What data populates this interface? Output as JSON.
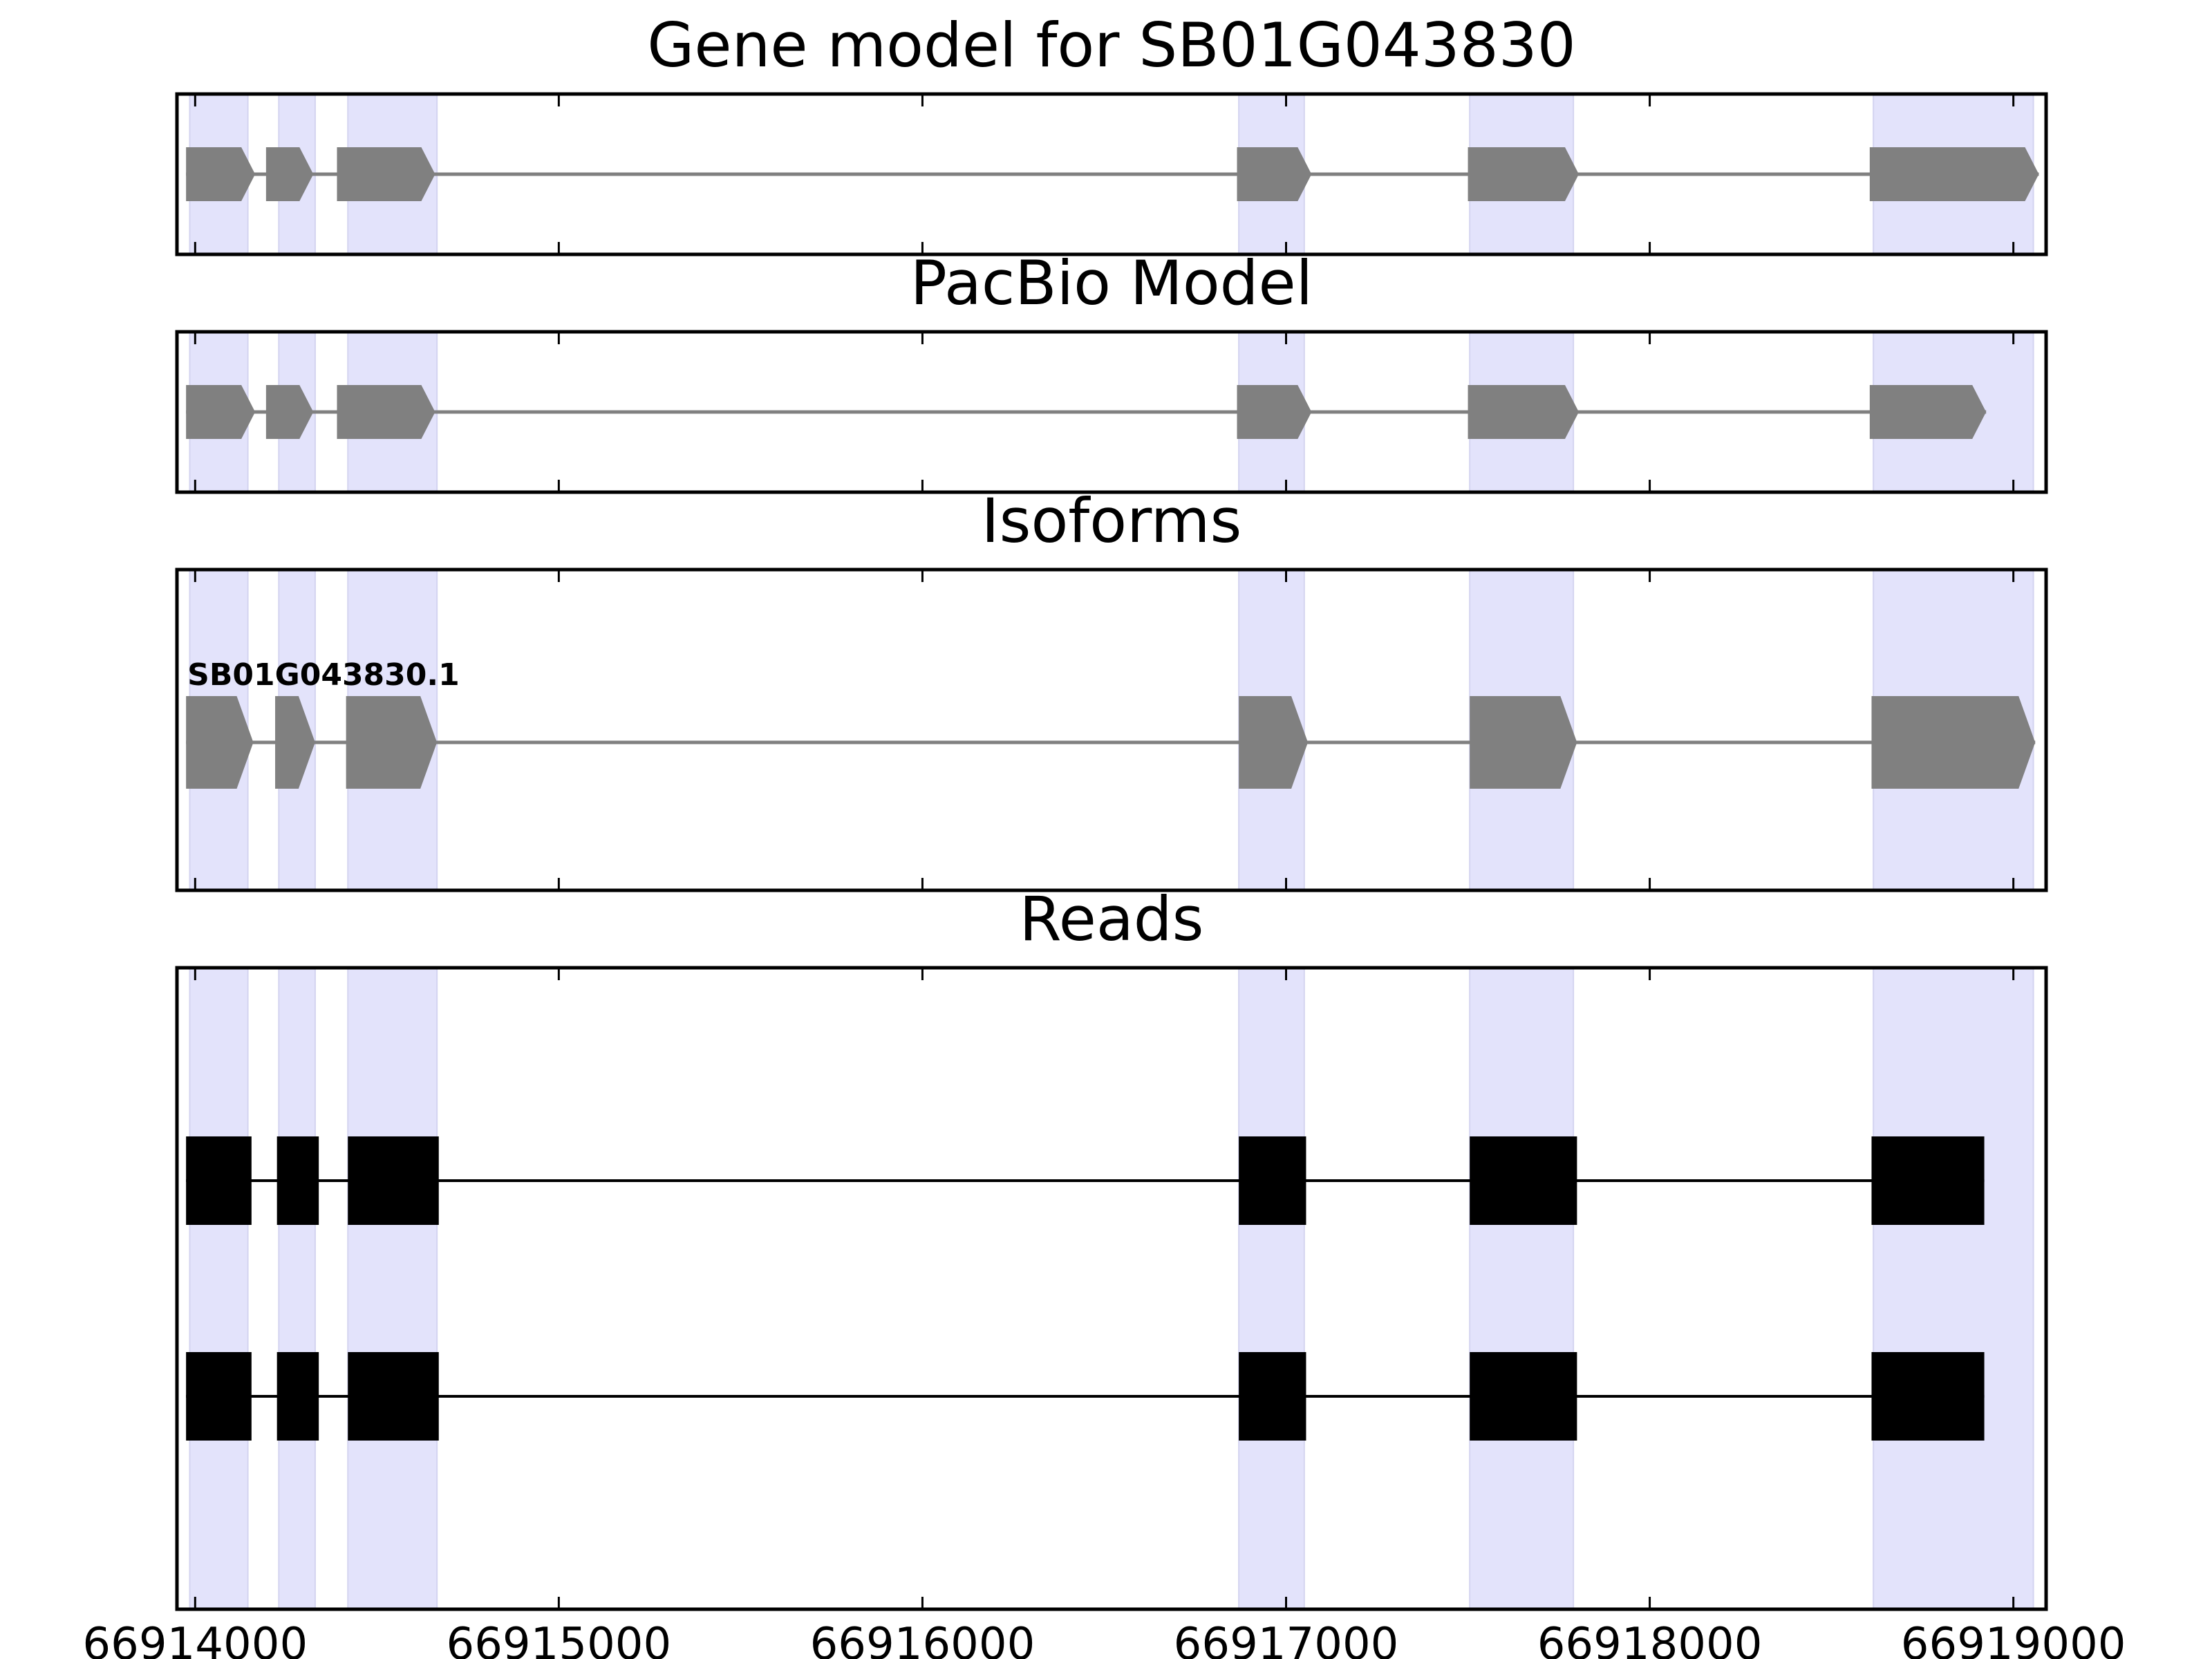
{
  "chart_data": {
    "type": "gene-structure",
    "xlim": [
      66913950,
      66919090
    ],
    "x_ticks": [
      66914000,
      66915000,
      66916000,
      66917000,
      66918000,
      66919000
    ],
    "x_tick_labels": [
      "66914000",
      "66915000",
      "66916000",
      "66917000",
      "66918000",
      "66919000"
    ],
    "colors": {
      "exon_model": "#808080",
      "exon_read": "#000000",
      "shading": "#e3e3fb",
      "intron_model": "#808080",
      "intron_read": "#000000",
      "frame": "#000000"
    },
    "shaded_regions": [
      [
        66913985,
        66914145
      ],
      [
        66914230,
        66914330
      ],
      [
        66914420,
        66914665
      ],
      [
        66916870,
        66917050
      ],
      [
        66917505,
        66917790
      ],
      [
        66918615,
        66919055
      ]
    ],
    "panels": [
      {
        "title": "Gene model for SB01G043830",
        "strand": "+",
        "tracks": [
          {
            "label": "",
            "exons": [
              [
                66913975,
                66914165
              ],
              [
                66914195,
                66914325
              ],
              [
                66914390,
                66914660
              ],
              [
                66916865,
                66917070
              ],
              [
                66917500,
                66917805
              ],
              [
                66918605,
                66919070
              ]
            ]
          }
        ]
      },
      {
        "title": "PacBio Model",
        "strand": "+",
        "tracks": [
          {
            "label": "",
            "exons": [
              [
                66913975,
                66914165
              ],
              [
                66914195,
                66914325
              ],
              [
                66914390,
                66914660
              ],
              [
                66916865,
                66917070
              ],
              [
                66917500,
                66917805
              ],
              [
                66918605,
                66918925
              ]
            ]
          }
        ]
      },
      {
        "title": "Isoforms",
        "strand": "+",
        "tracks": [
          {
            "label": "SB01G043830.1",
            "exons": [
              [
                66913975,
                66914160
              ],
              [
                66914220,
                66914330
              ],
              [
                66914415,
                66914665
              ],
              [
                66916870,
                66917060
              ],
              [
                66917505,
                66917800
              ],
              [
                66918610,
                66919060
              ]
            ]
          }
        ]
      },
      {
        "title": "Reads",
        "strand": "",
        "tracks": [
          {
            "label": "",
            "exons": [
              [
                66913975,
                66914155
              ],
              [
                66914225,
                66914340
              ],
              [
                66914420,
                66914670
              ],
              [
                66916870,
                66917055
              ],
              [
                66917505,
                66917800
              ],
              [
                66918610,
                66918920
              ]
            ]
          },
          {
            "label": "",
            "exons": [
              [
                66913975,
                66914155
              ],
              [
                66914225,
                66914340
              ],
              [
                66914420,
                66914670
              ],
              [
                66916870,
                66917055
              ],
              [
                66917505,
                66917800
              ],
              [
                66918610,
                66918920
              ]
            ]
          }
        ]
      }
    ]
  }
}
